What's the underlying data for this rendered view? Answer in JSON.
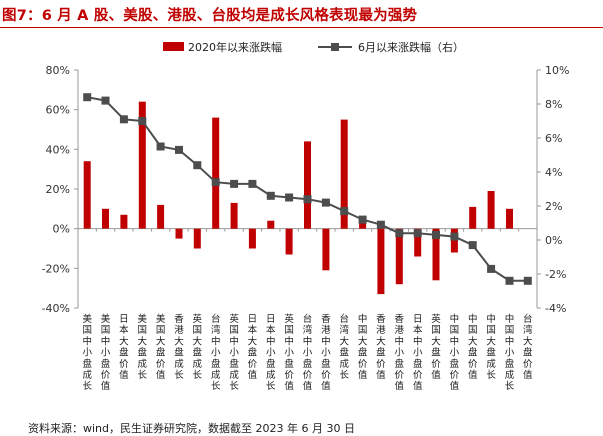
{
  "figure": {
    "title": "图7：6 月 A 股、美股、港股、台股均是成长风格表现最为强势",
    "source": "资料来源：wind，民生证券研究院，数据截至 2023 年 6 月 30 日"
  },
  "colors": {
    "bar": "#c00000",
    "line": "#4d4d4d",
    "axis": "#9a9a9a"
  },
  "chart_data": {
    "type": "bar+line",
    "categories": [
      "美国中小盘成长",
      "美国中小盘价值",
      "日本大盘价值",
      "美国大盘成长",
      "美国大盘价值",
      "香港大盘成长",
      "英国大盘成长",
      "台湾中小盘成长",
      "英国中小盘成长",
      "日本大盘价值",
      "日本中小盘成长",
      "英国中小盘价值",
      "台湾中小盘价值",
      "香港中小盘价值",
      "台湾大盘成长",
      "中国大盘价值",
      "香港大盘价值",
      "香港中小盘价值",
      "日本中小盘价值",
      "英国大盘价值",
      "中国中小盘价值",
      "中国大盘价值",
      "中国大盘成长",
      "中国中小盘成长",
      "台湾大盘价值"
    ],
    "series": [
      {
        "name": "2020年以来涨跌幅",
        "type": "bar",
        "axis": "left",
        "values": [
          34,
          10,
          7,
          64,
          12,
          -5,
          -10,
          56,
          13,
          -10,
          4,
          -13,
          44,
          -21,
          55,
          6,
          -33,
          -28,
          -14,
          -26,
          -12,
          11,
          19,
          10,
          0
        ]
      },
      {
        "name": "6月以来涨跌幅（右）",
        "type": "line",
        "axis": "right",
        "values": [
          8.4,
          8.2,
          7.1,
          7.0,
          5.5,
          5.3,
          4.4,
          3.4,
          3.3,
          3.3,
          2.6,
          2.5,
          2.4,
          2.2,
          1.7,
          1.2,
          0.9,
          0.4,
          0.4,
          0.3,
          0.2,
          -0.3,
          -1.7,
          -2.4,
          -2.4
        ]
      }
    ],
    "y_left": {
      "ylim": [
        -40,
        80
      ],
      "ticks": [
        "-40%",
        "-20%",
        "0%",
        "20%",
        "40%",
        "60%",
        "80%"
      ]
    },
    "y_right": {
      "ylim": [
        -4,
        10
      ],
      "ticks": [
        "-4%",
        "-2%",
        "0%",
        "2%",
        "4%",
        "6%",
        "8%",
        "10%"
      ]
    },
    "legend": {
      "position": "top-center"
    }
  }
}
